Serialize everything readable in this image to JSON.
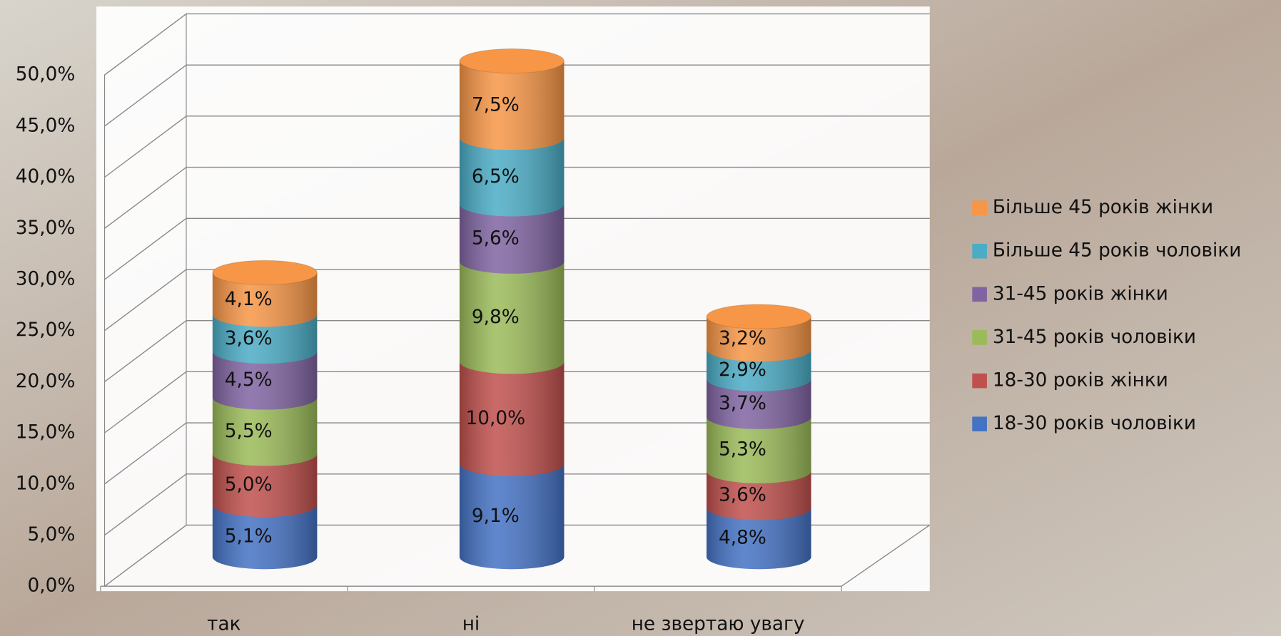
{
  "chart_data": {
    "type": "bar",
    "categories": [
      "так",
      "ні",
      "не звертаю увагу"
    ],
    "series": [
      {
        "name": "18-30 років чоловіки",
        "color": "#4472c4",
        "values": [
          5.1,
          9.1,
          4.8
        ],
        "value_labels": [
          "5,1%",
          "9,1%",
          "4,8%"
        ]
      },
      {
        "name": "18-30 років жінки",
        "color": "#c0504d",
        "values": [
          5.0,
          10.0,
          3.6
        ],
        "value_labels": [
          "5,0%",
          "10,0%",
          "3,6%"
        ]
      },
      {
        "name": "31-45 років чоловіки",
        "color": "#9bbb59",
        "values": [
          5.5,
          9.8,
          5.3
        ],
        "value_labels": [
          "5,5%",
          "9,8%",
          "5,3%"
        ]
      },
      {
        "name": "31-45 років жінки",
        "color": "#8064a2",
        "values": [
          4.5,
          5.6,
          3.7
        ],
        "value_labels": [
          "4,5%",
          "5,6%",
          "3,7%"
        ]
      },
      {
        "name": "Більше 45 років чоловіки",
        "color": "#4bacc6",
        "values": [
          3.6,
          6.5,
          2.9
        ],
        "value_labels": [
          "3,6%",
          "6,5%",
          "2,9%"
        ]
      },
      {
        "name": "Більше 45 років жінки",
        "color": "#f79646",
        "values": [
          4.1,
          7.5,
          3.2
        ],
        "value_labels": [
          "4,1%",
          "7,5%",
          "3,2%"
        ]
      }
    ],
    "ylim": [
      0,
      50
    ],
    "yticks": [
      {
        "value": 0,
        "label": "0,0%"
      },
      {
        "value": 5,
        "label": "5,0%"
      },
      {
        "value": 10,
        "label": "10,0%"
      },
      {
        "value": 15,
        "label": "15,0%"
      },
      {
        "value": 20,
        "label": "20,0%"
      },
      {
        "value": 25,
        "label": "25,0%"
      },
      {
        "value": 30,
        "label": "30,0%"
      },
      {
        "value": 35,
        "label": "35,0%"
      },
      {
        "value": 40,
        "label": "40,0%"
      },
      {
        "value": 45,
        "label": "45,0%"
      },
      {
        "value": 50,
        "label": "50,0%"
      }
    ],
    "grid": true,
    "stacked": true,
    "legend": "right"
  }
}
